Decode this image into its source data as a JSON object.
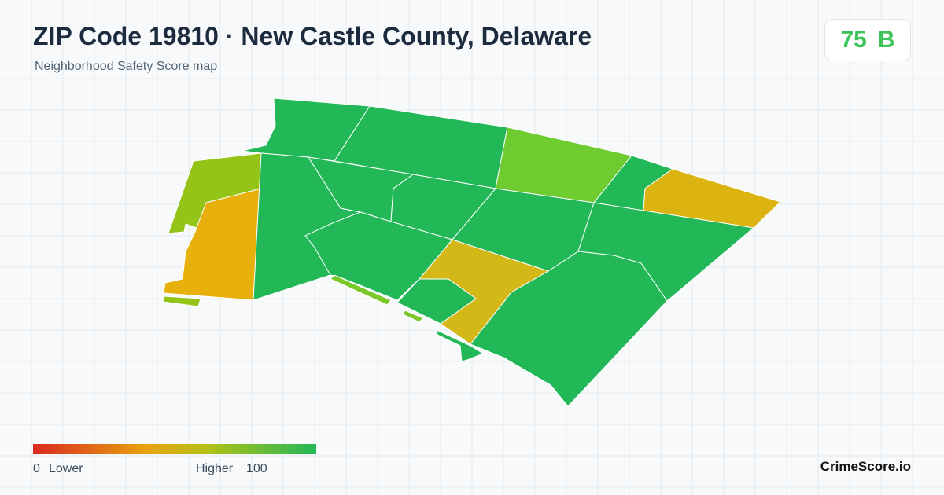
{
  "header": {
    "title": "ZIP Code 19810 · New Castle County, Delaware",
    "subtitle": "Neighborhood Safety Score map"
  },
  "score": {
    "value": 75,
    "grade": "B"
  },
  "legend": {
    "min": 0,
    "min_label": "Lower",
    "max_label": "Higher",
    "max": 100
  },
  "brand": "CrimeScore.io"
}
